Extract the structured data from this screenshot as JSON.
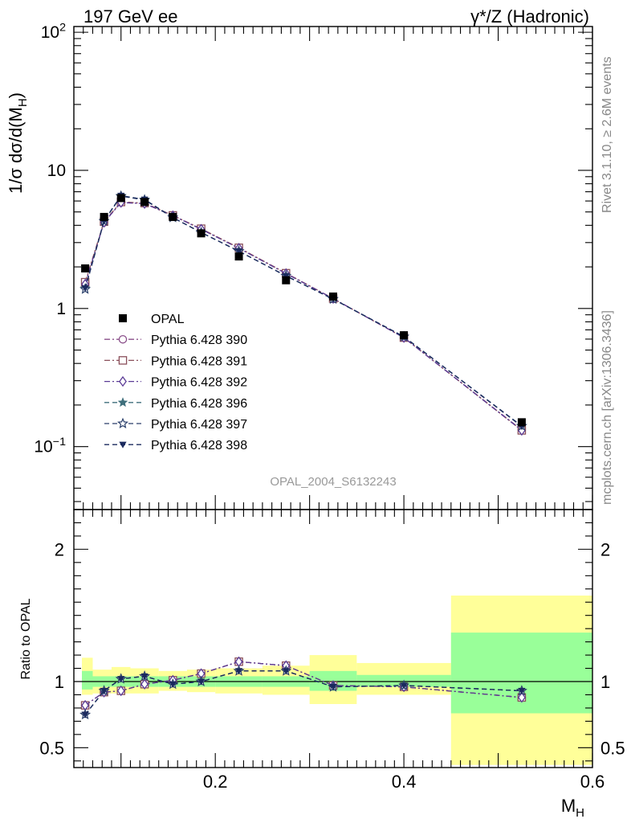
{
  "header": {
    "left": "197 GeV ee",
    "right": "γ*/Z (Hadronic)"
  },
  "side_labels": {
    "rivet": "Rivet 3.1.10, ≥ 2.6M events",
    "mcplots": "mcplots.cern.ch [arXiv:1306.3436]"
  },
  "analysis_label": "OPAL_2004_S6132243",
  "chart_data": [
    {
      "type": "line",
      "panel": "main",
      "ylabel": "1/σ dσ/d(M_H)",
      "yscale": "log",
      "ylim": [
        0.035,
        110
      ],
      "xlim": [
        0.05,
        0.6
      ],
      "y_tick_labels": [
        "10^-1",
        "1",
        "10",
        "10^2"
      ],
      "x": [
        0.062,
        0.082,
        0.1,
        0.125,
        0.155,
        0.185,
        0.225,
        0.275,
        0.325,
        0.4,
        0.525
      ],
      "reference": {
        "name": "OPAL",
        "values": [
          1.95,
          4.6,
          6.3,
          5.9,
          4.6,
          3.5,
          2.38,
          1.6,
          1.22,
          0.64,
          0.15
        ]
      },
      "series": [
        {
          "name": "Pythia 6.428 390",
          "color": "#8a4f8a",
          "marker": "circle-open",
          "dash": "7 3 2 3",
          "values": [
            1.52,
            4.2,
            5.85,
            5.75,
            4.7,
            3.75,
            2.75,
            1.8,
            1.18,
            0.615,
            0.132
          ]
        },
        {
          "name": "Pythia 6.428 391",
          "color": "#8a4f5a",
          "marker": "square-open",
          "dash": "7 3 2 3",
          "values": [
            1.55,
            4.25,
            5.9,
            5.8,
            4.72,
            3.78,
            2.75,
            1.8,
            1.18,
            0.615,
            0.131
          ]
        },
        {
          "name": "Pythia 6.428 392",
          "color": "#5b3b96",
          "marker": "diamond-open",
          "dash": "7 3 2 3",
          "values": [
            1.5,
            4.2,
            5.85,
            5.75,
            4.7,
            3.75,
            2.73,
            1.79,
            1.18,
            0.615,
            0.131
          ]
        },
        {
          "name": "Pythia 6.428 396",
          "color": "#3f6f7c",
          "marker": "star-filled",
          "dash": "6 4",
          "values": [
            1.4,
            4.3,
            6.55,
            6.15,
            4.55,
            3.55,
            2.6,
            1.72,
            1.17,
            0.625,
            0.141
          ]
        },
        {
          "name": "Pythia 6.428 397",
          "color": "#2a3f6a",
          "marker": "star-open",
          "dash": "6 4",
          "values": [
            1.38,
            4.3,
            6.5,
            6.1,
            4.55,
            3.55,
            2.6,
            1.72,
            1.17,
            0.625,
            0.141
          ]
        },
        {
          "name": "Pythia 6.428 398",
          "color": "#1b2a5e",
          "marker": "triangle-down",
          "dash": "6 4",
          "values": [
            1.4,
            4.3,
            6.55,
            6.15,
            4.55,
            3.55,
            2.6,
            1.72,
            1.17,
            0.625,
            0.14
          ]
        }
      ]
    },
    {
      "type": "line",
      "panel": "ratio",
      "ylabel": "Ratio to OPAL",
      "xlabel": "M_H",
      "ylim": [
        0.35,
        2.3
      ],
      "xlim": [
        0.05,
        0.6
      ],
      "y_tick_labels": [
        "0.5",
        "1",
        "2"
      ],
      "x_tick_labels": [
        "0.2",
        "0.4",
        "0.6"
      ],
      "bands": {
        "edges": [
          0.05,
          0.07,
          0.09,
          0.11,
          0.14,
          0.17,
          0.2,
          0.25,
          0.3,
          0.35,
          0.45,
          0.6
        ],
        "stat": [
          [
            0.94,
            1.08
          ],
          [
            0.96,
            1.04
          ],
          [
            0.96,
            1.04
          ],
          [
            0.96,
            1.04
          ],
          [
            0.96,
            1.04
          ],
          [
            0.96,
            1.04
          ],
          [
            0.96,
            1.04
          ],
          [
            0.96,
            1.04
          ],
          [
            0.93,
            1.08
          ],
          [
            0.96,
            1.05
          ],
          [
            0.76,
            1.37
          ]
        ],
        "total": [
          [
            0.9,
            1.18
          ],
          [
            0.91,
            1.09
          ],
          [
            0.91,
            1.11
          ],
          [
            0.91,
            1.1
          ],
          [
            0.93,
            1.08
          ],
          [
            0.92,
            1.09
          ],
          [
            0.91,
            1.1
          ],
          [
            0.9,
            1.12
          ],
          [
            0.83,
            1.2
          ],
          [
            0.9,
            1.14
          ],
          [
            0.37,
            1.65
          ]
        ]
      },
      "series": [
        {
          "name": "Pythia 6.428 390",
          "values": [
            0.82,
            0.92,
            0.93,
            0.98,
            1.01,
            1.06,
            1.15,
            1.12,
            0.97,
            0.96,
            0.88
          ]
        },
        {
          "name": "Pythia 6.428 391",
          "values": [
            0.82,
            0.92,
            0.93,
            0.98,
            1.01,
            1.06,
            1.15,
            1.12,
            0.97,
            0.96,
            0.88
          ]
        },
        {
          "name": "Pythia 6.428 392",
          "values": [
            0.82,
            0.92,
            0.93,
            0.98,
            1.01,
            1.06,
            1.15,
            1.12,
            0.97,
            0.96,
            0.88
          ]
        },
        {
          "name": "Pythia 6.428 396",
          "values": [
            0.75,
            0.93,
            1.02,
            1.04,
            0.98,
            1.0,
            1.08,
            1.08,
            0.96,
            0.97,
            0.93
          ]
        },
        {
          "name": "Pythia 6.428 397",
          "values": [
            0.75,
            0.93,
            1.02,
            1.04,
            0.98,
            1.0,
            1.08,
            1.08,
            0.96,
            0.97,
            0.93
          ]
        },
        {
          "name": "Pythia 6.428 398",
          "values": [
            0.75,
            0.93,
            1.02,
            1.04,
            0.98,
            1.0,
            1.08,
            1.08,
            0.96,
            0.97,
            0.93
          ]
        }
      ]
    }
  ]
}
